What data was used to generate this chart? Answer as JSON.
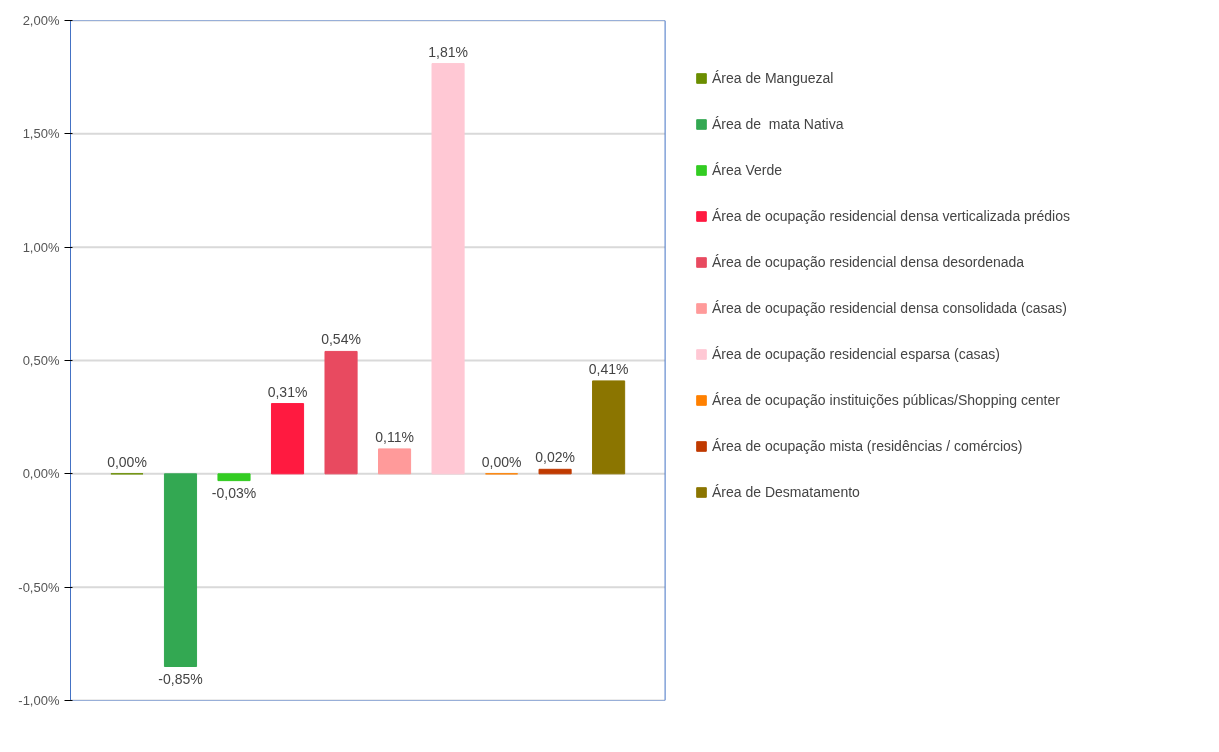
{
  "chart_data": {
    "type": "bar",
    "categories": [
      null
    ],
    "series": [
      {
        "name": "Área de Manguezal",
        "color": "#6b8e00",
        "values": [
          0.0
        ],
        "value_labels": [
          "0,00%"
        ]
      },
      {
        "name": "Área de  mata Nativa",
        "color": "#33a852",
        "values": [
          -0.85
        ],
        "value_labels": [
          "-0,85%"
        ]
      },
      {
        "name": "Área Verde",
        "color": "#33cc22",
        "values": [
          -0.03
        ],
        "value_labels": [
          "-0,03%"
        ]
      },
      {
        "name": "Área de ocupação residencial densa verticalizada prédios",
        "color": "#ff1a40",
        "values": [
          0.31
        ],
        "value_labels": [
          "0,31%"
        ]
      },
      {
        "name": "Área de ocupação residencial densa desordenada",
        "color": "#e84a60",
        "values": [
          0.54
        ],
        "value_labels": [
          "0,54%"
        ]
      },
      {
        "name": "Área de ocupação residencial densa consolidada (casas)",
        "color": "#ff9a9a",
        "values": [
          0.11
        ],
        "value_labels": [
          "0,11%"
        ]
      },
      {
        "name": "Área de ocupação residencial esparsa (casas)",
        "color": "#ffc8d4",
        "values": [
          1.81
        ],
        "value_labels": [
          "1,81%"
        ]
      },
      {
        "name": "Área de ocupação instituições públicas/Shopping center",
        "color": "#ff8000",
        "values": [
          0.0
        ],
        "value_labels": [
          "0,00%"
        ]
      },
      {
        "name": "Área de ocupação mista (residências / comércios)",
        "color": "#c03a00",
        "values": [
          0.02
        ],
        "value_labels": [
          "0,02%"
        ]
      },
      {
        "name": "Área de Desmatamento",
        "color": "#8b7500",
        "values": [
          0.41
        ],
        "value_labels": [
          "0,41%"
        ]
      }
    ],
    "ylim": [
      -1,
      2
    ],
    "yticks": [
      {
        "value": -1,
        "label": "-1,00%"
      },
      {
        "value": -0.5,
        "label": "-0,50%"
      },
      {
        "value": 0,
        "label": "0,00%"
      },
      {
        "value": 0.5,
        "label": "0,50%"
      },
      {
        "value": 1,
        "label": "1,00%"
      },
      {
        "value": 1.5,
        "label": "1,50%"
      },
      {
        "value": 2,
        "label": "2,00%"
      }
    ],
    "grid": "y",
    "legend": "right"
  }
}
